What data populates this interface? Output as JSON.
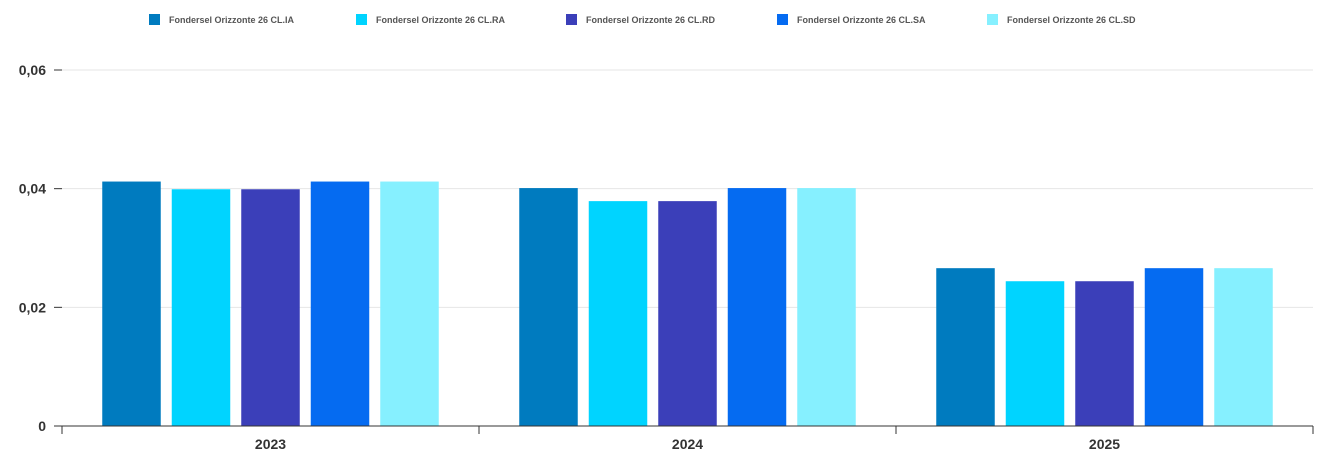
{
  "chart_data": {
    "type": "bar",
    "categories": [
      "2023",
      "2024",
      "2025"
    ],
    "series": [
      {
        "name": "Fondersel Orizzonte 26 CL.IA",
        "color": "#007bbf",
        "values": [
          0.0412,
          0.0401,
          0.0266
        ]
      },
      {
        "name": "Fondersel Orizzonte 26 CL.RA",
        "color": "#00d4ff",
        "values": [
          0.0399,
          0.0379,
          0.0244
        ]
      },
      {
        "name": "Fondersel Orizzonte 26 CL.RD",
        "color": "#3b3fb9",
        "values": [
          0.0399,
          0.0379,
          0.0244
        ]
      },
      {
        "name": "Fondersel Orizzonte 26 CL.SA",
        "color": "#056bf1",
        "values": [
          0.0412,
          0.0401,
          0.0266
        ]
      },
      {
        "name": "Fondersel Orizzonte 26 CL.SD",
        "color": "#86f0ff",
        "values": [
          0.0412,
          0.0401,
          0.0266
        ]
      }
    ],
    "y_ticks": [
      "0",
      "0,02",
      "0,04",
      "0,06"
    ],
    "ylim": [
      0,
      0.06
    ],
    "grid": true,
    "legend_position": "top"
  }
}
